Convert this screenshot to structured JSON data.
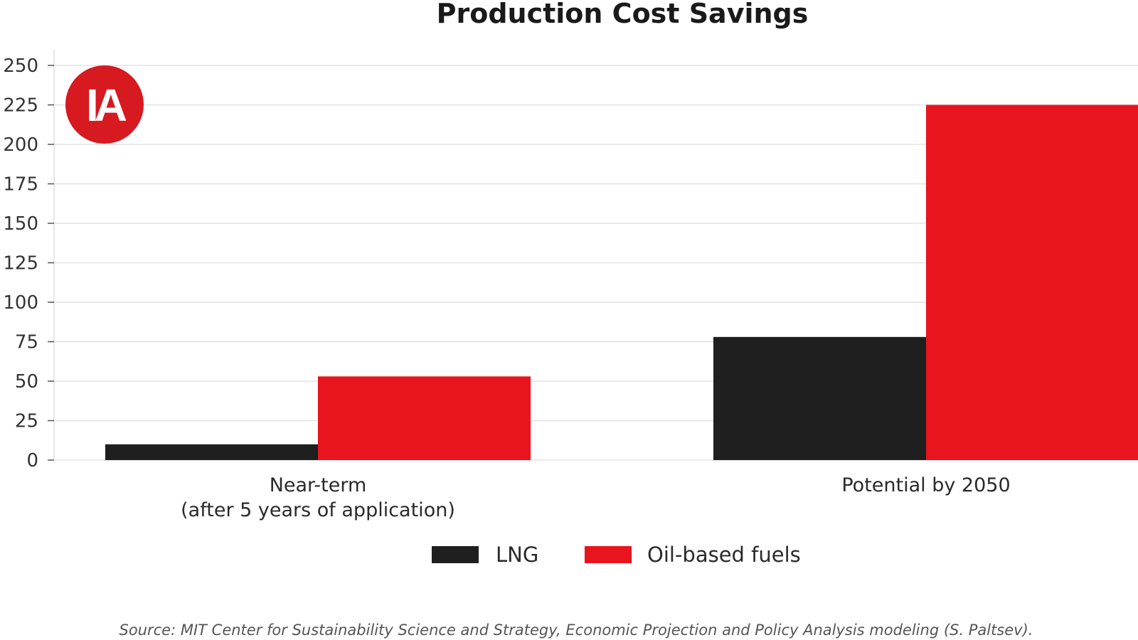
{
  "chart_data": {
    "type": "bar",
    "title": "Production Cost Savings",
    "xlabel": "",
    "ylabel": "",
    "categories": [
      [
        "Near-term",
        "(after 5 years of application)"
      ],
      [
        "Potential by 2050"
      ]
    ],
    "series": [
      {
        "name": "LNG",
        "values": [
          10,
          78
        ],
        "color": "#1f1f1f"
      },
      {
        "name": "Oil-based fuels",
        "values": [
          53,
          225
        ],
        "color": "#e8141e"
      }
    ],
    "ylim": [
      0,
      250
    ],
    "yticks": [
      0,
      25,
      50,
      75,
      100,
      125,
      150,
      175,
      200,
      225,
      250
    ],
    "grid": "horizontal",
    "legend_position": "bottom-center"
  },
  "logo": {
    "text": "IA",
    "color": "#d71920"
  },
  "source": "Source: MIT Center for Sustainability Science and Strategy, Economic Projection and Policy Analysis modeling (S. Paltsev)."
}
